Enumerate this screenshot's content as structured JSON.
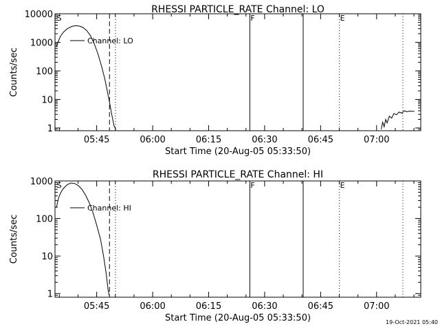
{
  "figure": {
    "footer_timestamp": "19-Oct-2021 05:40"
  },
  "chart_data": [
    {
      "type": "line",
      "title": "RHESSI PARTICLE_RATE Channel: LO",
      "xlabel": "Start Time (20-Aug-05 05:33:50)",
      "ylabel": "Counts/sec",
      "x_unit": "minutes since 05:33:50",
      "xlim": [
        0,
        98
      ],
      "ylim": [
        0.8,
        10000
      ],
      "yscale": "log",
      "x_ticks": [
        {
          "label": "05:45",
          "value": 11.17
        },
        {
          "label": "06:00",
          "value": 26.17
        },
        {
          "label": "06:15",
          "value": 41.17
        },
        {
          "label": "06:30",
          "value": 56.17
        },
        {
          "label": "06:45",
          "value": 71.17
        },
        {
          "label": "07:00",
          "value": 86.17
        }
      ],
      "y_ticks": [
        {
          "label": "1",
          "value": 1
        },
        {
          "label": "10",
          "value": 10
        },
        {
          "label": "100",
          "value": 100
        },
        {
          "label": "1000",
          "value": 1000
        },
        {
          "label": "10000",
          "value": 10000
        }
      ],
      "legend": {
        "position": "top-left",
        "label": "Channel: LO"
      },
      "series": [
        {
          "name": "Channel: LO",
          "segments": [
            [
              [
                0.4,
                700
              ],
              [
                0.9,
                1100
              ],
              [
                1.5,
                1650
              ],
              [
                2.3,
                2300
              ],
              [
                3.3,
                3000
              ],
              [
                4.5,
                3600
              ],
              [
                5.5,
                3800
              ],
              [
                6.5,
                3700
              ],
              [
                7.5,
                3300
              ],
              [
                8.5,
                2600
              ],
              [
                9.5,
                1700
              ],
              [
                10.5,
                900
              ],
              [
                11.5,
                400
              ],
              [
                12.5,
                140
              ],
              [
                13.3,
                55
              ],
              [
                14.0,
                20
              ],
              [
                14.6,
                8
              ],
              [
                15.2,
                3
              ],
              [
                15.8,
                1.2
              ],
              [
                16.3,
                0.9
              ]
            ],
            [
              [
                87.4,
                0.9
              ],
              [
                87.8,
                1.6
              ],
              [
                88.2,
                1.1
              ],
              [
                88.6,
                2.0
              ],
              [
                89.0,
                1.5
              ],
              [
                89.6,
                2.6
              ],
              [
                90.2,
                2.2
              ],
              [
                90.8,
                3.2
              ],
              [
                91.5,
                2.9
              ],
              [
                92.2,
                3.6
              ],
              [
                92.9,
                3.3
              ],
              [
                93.6,
                4.0
              ],
              [
                94.3,
                3.7
              ],
              [
                95.0,
                3.9
              ],
              [
                96.3,
                3.8
              ]
            ]
          ]
        }
      ],
      "markers": [
        {
          "label": "S",
          "x": 0.3,
          "style": "none"
        },
        {
          "label": "",
          "x": 14.6,
          "style": "dashed"
        },
        {
          "label": "",
          "x": 16.2,
          "style": "dotted"
        },
        {
          "label": "F",
          "x": 52.2,
          "style": "solid"
        },
        {
          "label": "",
          "x": 66.5,
          "style": "solid"
        },
        {
          "label": "E",
          "x": 76.2,
          "style": "dotted"
        },
        {
          "label": "",
          "x": 93.2,
          "style": "dotted"
        }
      ]
    },
    {
      "type": "line",
      "title": "RHESSI PARTICLE_RATE Channel: HI",
      "xlabel": "Start Time (20-Aug-05 05:33:50)",
      "ylabel": "Counts/sec",
      "x_unit": "minutes since 05:33:50",
      "xlim": [
        0,
        98
      ],
      "ylim": [
        0.8,
        1000
      ],
      "yscale": "log",
      "x_ticks": [
        {
          "label": "05:45",
          "value": 11.17
        },
        {
          "label": "06:00",
          "value": 26.17
        },
        {
          "label": "06:15",
          "value": 41.17
        },
        {
          "label": "06:30",
          "value": 56.17
        },
        {
          "label": "06:45",
          "value": 71.17
        },
        {
          "label": "07:00",
          "value": 86.17
        }
      ],
      "y_ticks": [
        {
          "label": "1",
          "value": 1
        },
        {
          "label": "10",
          "value": 10
        },
        {
          "label": "100",
          "value": 100
        },
        {
          "label": "1000",
          "value": 1000
        }
      ],
      "legend": {
        "position": "top-left",
        "label": "Channel: HI"
      },
      "series": [
        {
          "name": "Channel: HI",
          "segments": [
            [
              [
                0.4,
                200
              ],
              [
                0.9,
                340
              ],
              [
                1.5,
                480
              ],
              [
                2.3,
                640
              ],
              [
                3.3,
                800
              ],
              [
                4.3,
                880
              ],
              [
                5.2,
                860
              ],
              [
                6.2,
                760
              ],
              [
                7.2,
                600
              ],
              [
                8.2,
                420
              ],
              [
                9.2,
                260
              ],
              [
                10.2,
                140
              ],
              [
                11.2,
                65
              ],
              [
                12.2,
                28
              ],
              [
                13.0,
                10
              ],
              [
                13.7,
                3.5
              ],
              [
                14.2,
                1.3
              ],
              [
                14.5,
                0.9
              ]
            ]
          ]
        }
      ],
      "markers": [
        {
          "label": "S",
          "x": 0.3,
          "style": "none"
        },
        {
          "label": "",
          "x": 14.6,
          "style": "dashed"
        },
        {
          "label": "",
          "x": 16.2,
          "style": "dotted"
        },
        {
          "label": "F",
          "x": 52.2,
          "style": "solid"
        },
        {
          "label": "",
          "x": 66.5,
          "style": "solid"
        },
        {
          "label": "E",
          "x": 76.2,
          "style": "dotted"
        },
        {
          "label": "",
          "x": 93.2,
          "style": "dotted"
        }
      ]
    }
  ]
}
